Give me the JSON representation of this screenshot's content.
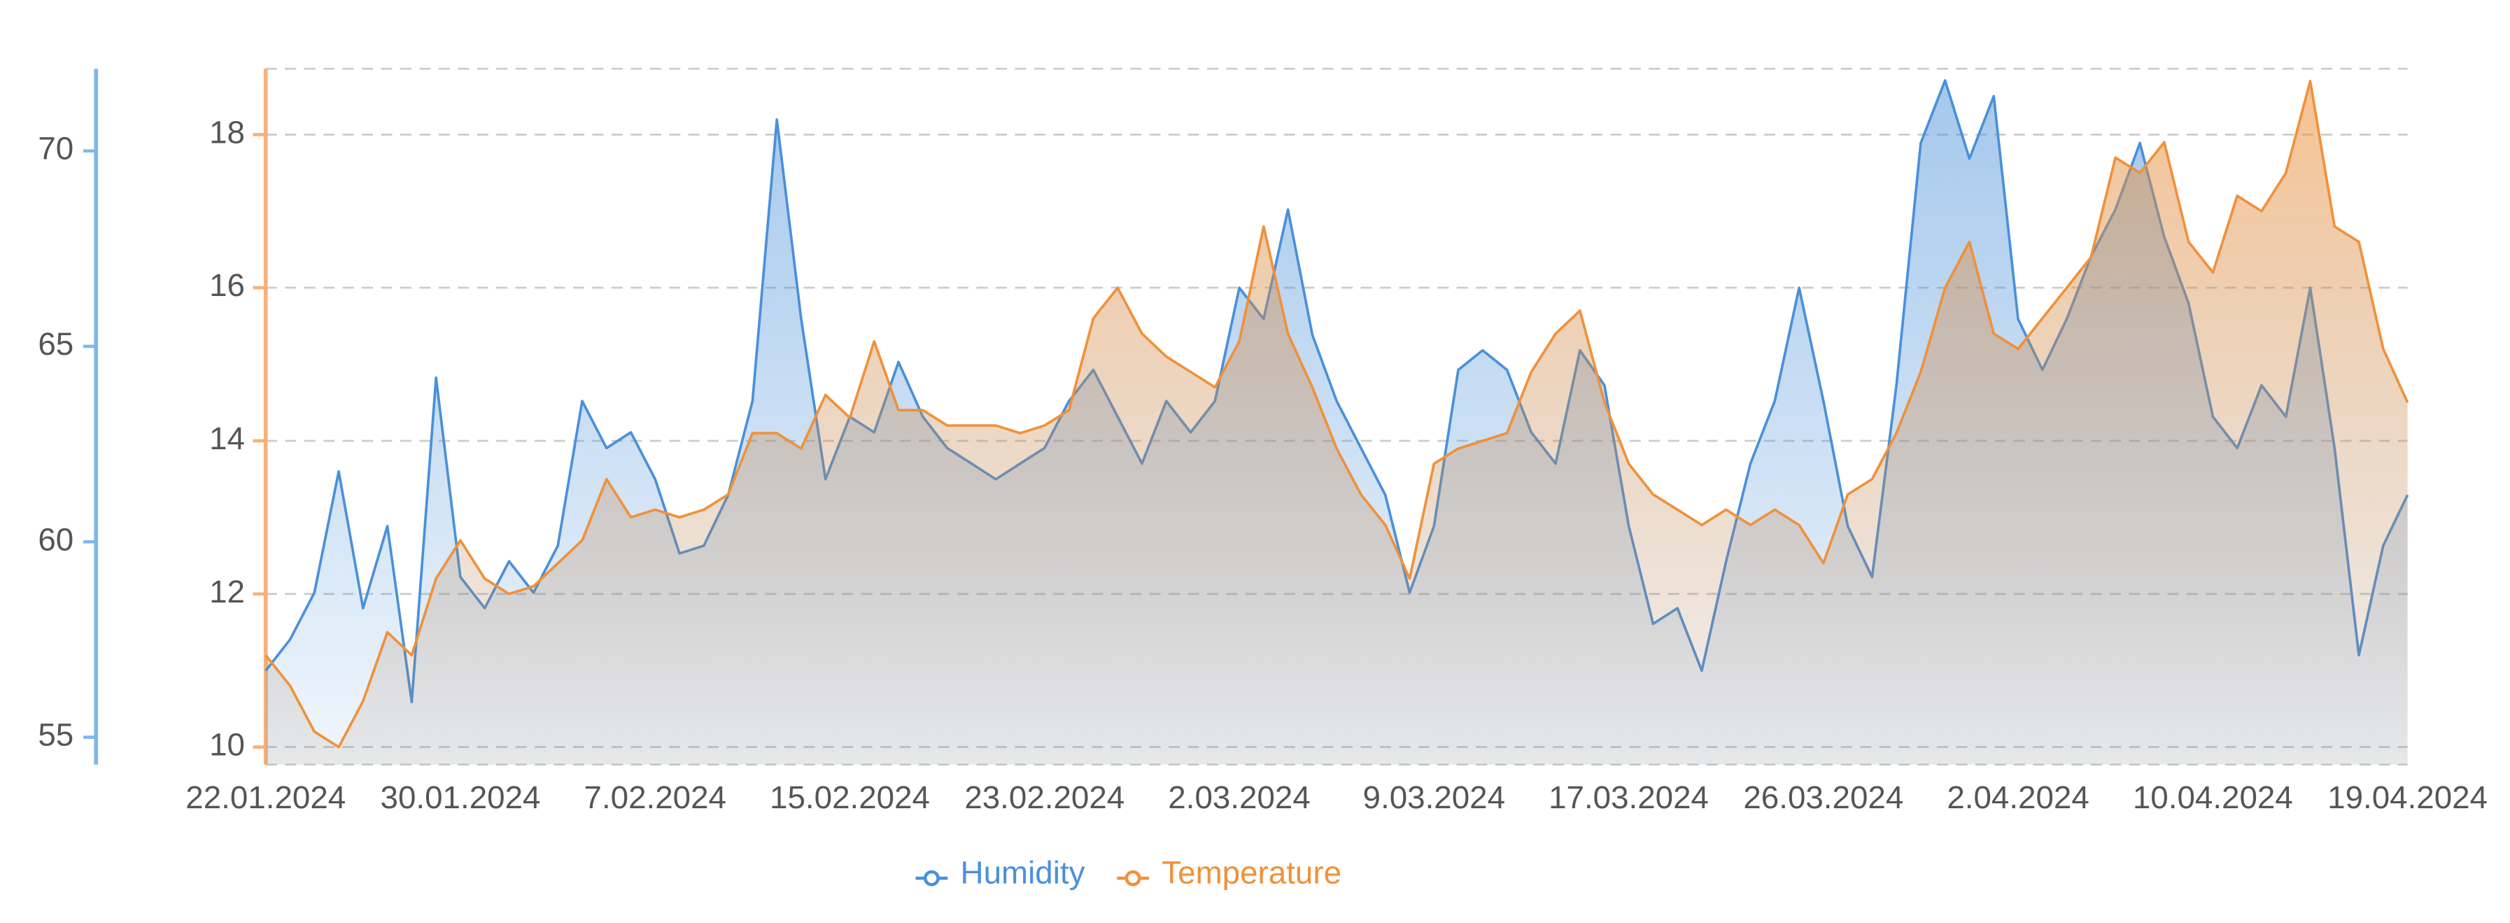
{
  "chart_data": {
    "type": "line",
    "categories": [
      "22.01.2024",
      null,
      null,
      null,
      null,
      null,
      null,
      null,
      "30.01.2024",
      null,
      null,
      null,
      null,
      null,
      null,
      null,
      "7.02.2024",
      null,
      null,
      null,
      null,
      null,
      null,
      null,
      "15.02.2024",
      null,
      null,
      null,
      null,
      null,
      null,
      null,
      "23.02.2024",
      null,
      null,
      null,
      null,
      null,
      null,
      null,
      "2.03.2024",
      null,
      null,
      null,
      null,
      null,
      null,
      null,
      "9.03.2024",
      null,
      null,
      null,
      null,
      null,
      null,
      null,
      "17.03.2024",
      null,
      null,
      null,
      null,
      null,
      null,
      null,
      "26.03.2024",
      null,
      null,
      null,
      null,
      null,
      null,
      null,
      "2.04.2024",
      null,
      null,
      null,
      null,
      null,
      null,
      null,
      "10.04.2024",
      null,
      null,
      null,
      null,
      null,
      null,
      null,
      "19.04.2024"
    ],
    "series": [
      {
        "name": "Humidity",
        "color": "#4a90d9",
        "axis": "y",
        "values": [
          56.7,
          57.5,
          58.7,
          61.8,
          58.3,
          60.4,
          55.9,
          64.2,
          59.1,
          58.3,
          59.5,
          58.7,
          59.9,
          63.6,
          62.4,
          62.8,
          61.6,
          59.7,
          59.9,
          61.2,
          63.6,
          70.8,
          65.7,
          61.6,
          63.2,
          62.8,
          64.6,
          63.2,
          62.4,
          62.0,
          61.6,
          62.0,
          62.4,
          63.6,
          64.4,
          63.2,
          62.0,
          63.6,
          62.8,
          63.6,
          66.5,
          65.7,
          68.5,
          65.3,
          63.6,
          62.4,
          61.2,
          58.7,
          60.4,
          64.4,
          64.9,
          64.4,
          62.8,
          62.0,
          64.9,
          64.0,
          60.4,
          57.9,
          58.3,
          56.7,
          59.5,
          62.0,
          63.6,
          66.5,
          63.6,
          60.4,
          59.1,
          64.0,
          70.2,
          71.8,
          69.8,
          71.4,
          65.7,
          64.4,
          65.7,
          67.3,
          68.5,
          70.2,
          67.8,
          66.1,
          63.2,
          62.4,
          64.0,
          63.2,
          66.5,
          62.4,
          57.1,
          59.9,
          61.2
        ]
      },
      {
        "name": "Temperature",
        "color": "#f0913a",
        "axis": "y2",
        "values": [
          11.2,
          10.8,
          10.2,
          10.0,
          10.6,
          11.5,
          11.2,
          12.2,
          12.7,
          12.2,
          12.0,
          12.1,
          12.4,
          12.7,
          13.5,
          13.0,
          13.1,
          13.0,
          13.1,
          13.3,
          14.1,
          14.1,
          13.9,
          14.6,
          14.3,
          15.3,
          14.4,
          14.4,
          14.2,
          14.2,
          14.2,
          14.1,
          14.2,
          14.4,
          15.6,
          16.0,
          15.4,
          15.1,
          14.9,
          14.7,
          15.3,
          16.8,
          15.4,
          14.7,
          13.9,
          13.3,
          12.9,
          12.2,
          13.7,
          13.9,
          14.0,
          14.1,
          14.9,
          15.4,
          15.7,
          14.5,
          13.7,
          13.3,
          13.1,
          12.9,
          13.1,
          12.9,
          13.1,
          12.9,
          12.4,
          13.3,
          13.5,
          14.1,
          14.9,
          16.0,
          16.6,
          15.4,
          15.2,
          15.6,
          16.0,
          16.4,
          17.7,
          17.5,
          17.9,
          16.6,
          16.2,
          17.2,
          17.0,
          17.5,
          18.7,
          16.8,
          16.6,
          15.2,
          14.5
        ]
      }
    ],
    "ylim": [
      54.3,
      72.1
    ],
    "yticks": [
      55,
      60,
      65,
      70
    ],
    "y2lim": [
      9.77,
      18.86
    ],
    "y2ticks": [
      10,
      12,
      14,
      16,
      18
    ],
    "grid": true,
    "legend": "bottom"
  }
}
